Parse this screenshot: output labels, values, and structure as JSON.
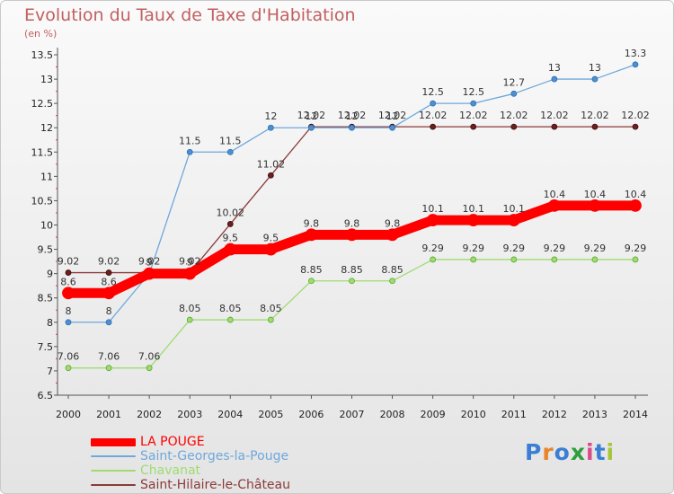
{
  "chart_data": {
    "type": "line",
    "title": "Evolution du Taux de Taxe d'Habitation",
    "subtitle": "(en %)",
    "x": [
      "2000",
      "2001",
      "2002",
      "2003",
      "2004",
      "2005",
      "2006",
      "2007",
      "2008",
      "2009",
      "2010",
      "2011",
      "2012",
      "2013",
      "2014"
    ],
    "ylim": [
      6.5,
      13.5
    ],
    "yticks": [
      "6.5",
      "7",
      "7.5",
      "8",
      "8.5",
      "9",
      "9.5",
      "10",
      "10.5",
      "11",
      "11.5",
      "12",
      "12.5",
      "13",
      "13.5"
    ],
    "grid": false,
    "legend_position": "bottom-left",
    "series": [
      {
        "name": "LA POUGE",
        "color": "#ff0000",
        "values": [
          8.6,
          8.6,
          9.0,
          9.0,
          9.5,
          9.5,
          9.8,
          9.8,
          9.8,
          10.1,
          10.1,
          10.1,
          10.4,
          10.4,
          10.4
        ],
        "labels": [
          "8.6",
          "8.6",
          "9",
          "9",
          "9.5",
          "9.5",
          "9.8",
          "9.8",
          "9.8",
          "10.1",
          "10.1",
          "10.1",
          "10.4",
          "10.4",
          "10.4"
        ]
      },
      {
        "name": "Saint-Georges-la-Pouge",
        "color": "#6ea8dc",
        "values": [
          8.0,
          8.0,
          9.0,
          11.5,
          11.5,
          12.0,
          12.0,
          12.0,
          12.0,
          12.5,
          12.5,
          12.7,
          13.0,
          13.0,
          13.3
        ],
        "labels": [
          "8",
          "8",
          "9",
          "11.5",
          "11.5",
          "12",
          "12",
          "12",
          "12",
          "12.5",
          "12.5",
          "12.7",
          "13",
          "13",
          "13.3"
        ]
      },
      {
        "name": "Chavanat",
        "color": "#9fdc70",
        "values": [
          7.06,
          7.06,
          7.06,
          8.05,
          8.05,
          8.05,
          8.85,
          8.85,
          8.85,
          9.29,
          9.29,
          9.29,
          9.29,
          9.29,
          9.29
        ],
        "labels": [
          "7.06",
          "7.06",
          "7.06",
          "8.05",
          "8.05",
          "8.05",
          "8.85",
          "8.85",
          "8.85",
          "9.29",
          "9.29",
          "9.29",
          "9.29",
          "9.29",
          "9.29"
        ]
      },
      {
        "name": "Saint-Hilaire-le-Château",
        "color": "#8b3a3a",
        "values": [
          9.02,
          9.02,
          9.02,
          9.02,
          10.02,
          11.02,
          12.02,
          12.02,
          12.02,
          12.02,
          12.02,
          12.02,
          12.02,
          12.02,
          12.02
        ],
        "labels": [
          "9.02",
          "9.02",
          "9.02",
          "9.02",
          "10.02",
          "11.02",
          "12.02",
          "12.02",
          "12.02",
          "12.02",
          "12.02",
          "12.02",
          "12.02",
          "12.02",
          "12.02"
        ]
      }
    ]
  },
  "legend": {
    "items": [
      {
        "label": "LA POUGE",
        "color": "#ff0000",
        "thickness": "thick"
      },
      {
        "label": "Saint-Georges-la-Pouge",
        "color": "#6ea8dc",
        "thickness": "thin"
      },
      {
        "label": "Chavanat",
        "color": "#9fdc70",
        "thickness": "thin"
      },
      {
        "label": "Saint-Hilaire-le-Château",
        "color": "#8b3a3a",
        "thickness": "thin"
      }
    ]
  },
  "logo": {
    "text": "Proxiti",
    "letter_colors": [
      "#3a7fd5",
      "#e8852a",
      "#3a7fd5",
      "#2e9e3e",
      "#d94b8a",
      "#3a7fd5",
      "#a6c63a"
    ]
  }
}
